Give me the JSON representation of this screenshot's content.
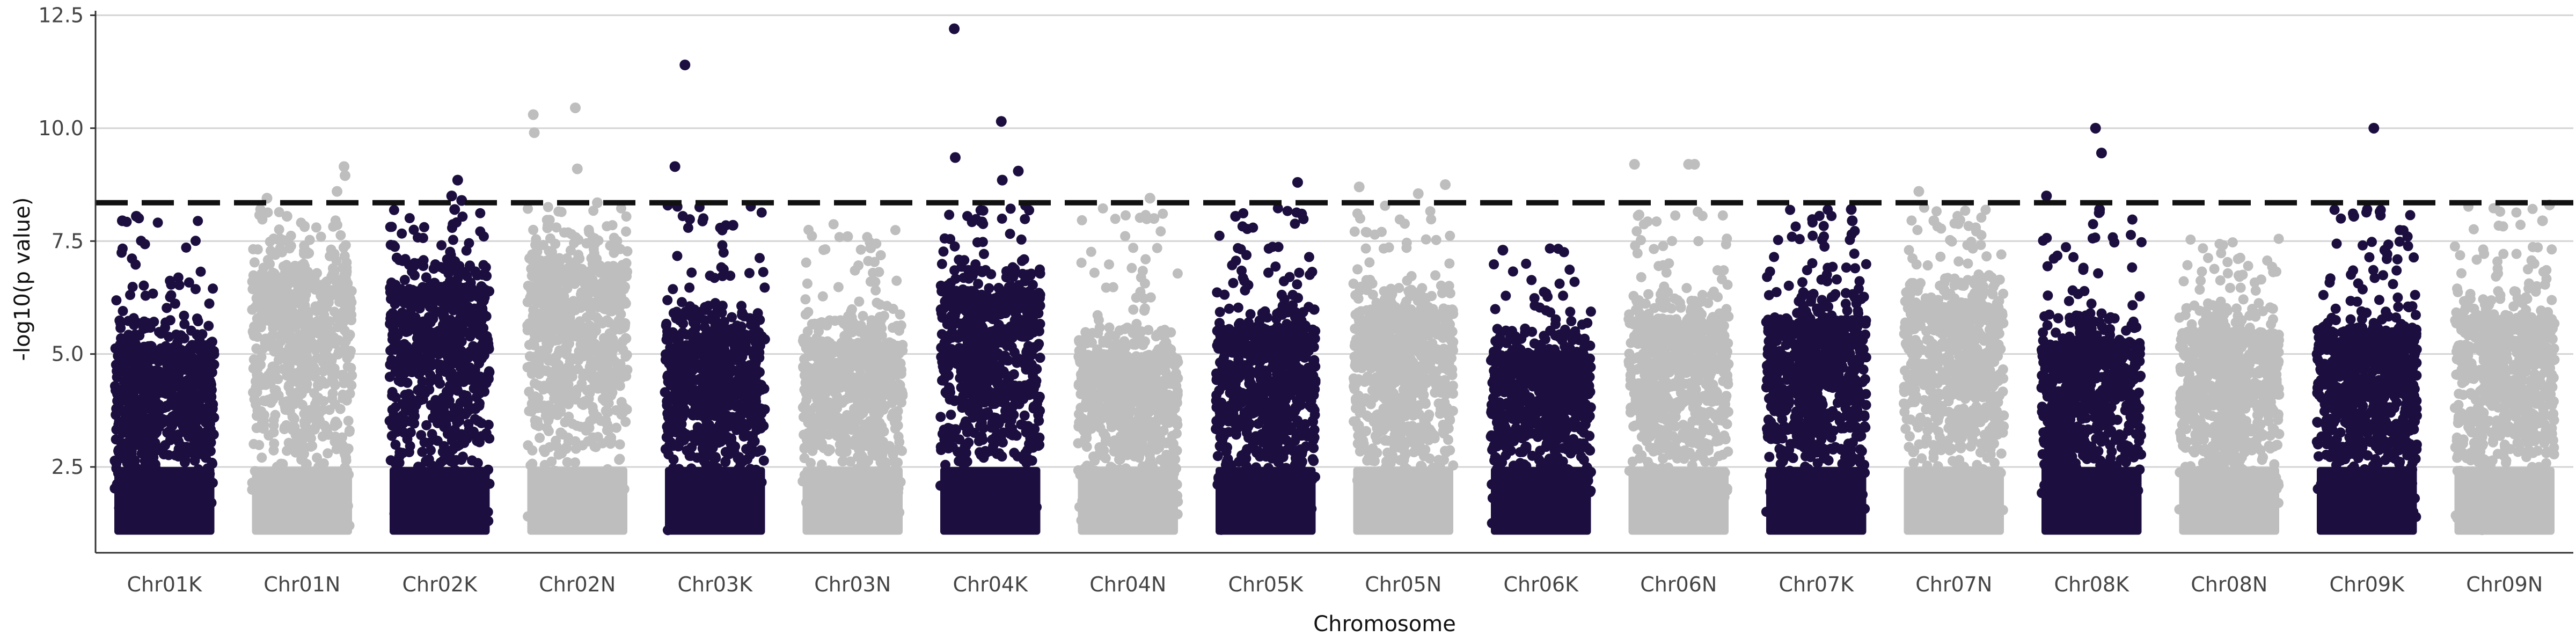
{
  "chart_data": {
    "type": "scatter",
    "title": "",
    "xlabel": "Chromosome",
    "ylabel": "-log10(p value)",
    "ylim": [
      0.6,
      12.6
    ],
    "y_ticks": [
      "2.5",
      "5.0",
      "7.5",
      "10.0",
      "12.5"
    ],
    "grid": "horizontal major lines",
    "threshold": 8.35,
    "colors": {
      "K": "#1c0f40",
      "N": "#bebebe",
      "grid": "#d4d4d4",
      "axis": "#333333",
      "threshold": "#111111"
    },
    "categories": [
      "Chr01K",
      "Chr01N",
      "Chr02K",
      "Chr02N",
      "Chr03K",
      "Chr03N",
      "Chr04K",
      "Chr04N",
      "Chr05K",
      "Chr05N",
      "Chr06K",
      "Chr06N",
      "Chr07K",
      "Chr07N",
      "Chr08K",
      "Chr08N",
      "Chr09K",
      "Chr09N"
    ],
    "chromosome_summaries": [
      {
        "name": "Chr01K",
        "bulk_top": 5.2,
        "max": 8.1
      },
      {
        "name": "Chr01N",
        "bulk_top": 6.8,
        "max": 9.1
      },
      {
        "name": "Chr02K",
        "bulk_top": 6.5,
        "max": 8.9
      },
      {
        "name": "Chr02N",
        "bulk_top": 7.0,
        "max": 10.4
      },
      {
        "name": "Chr03K",
        "bulk_top": 5.5,
        "max": 11.4
      },
      {
        "name": "Chr03N",
        "bulk_top": 5.3,
        "max": 7.9
      },
      {
        "name": "Chr04K",
        "bulk_top": 6.4,
        "max": 12.2
      },
      {
        "name": "Chr04N",
        "bulk_top": 5.0,
        "max": 8.4
      },
      {
        "name": "Chr05K",
        "bulk_top": 5.5,
        "max": 8.8
      },
      {
        "name": "Chr05N",
        "bulk_top": 6.0,
        "max": 8.7
      },
      {
        "name": "Chr06K",
        "bulk_top": 5.0,
        "max": 7.4
      },
      {
        "name": "Chr06N",
        "bulk_top": 5.8,
        "max": 9.2
      },
      {
        "name": "Chr07K",
        "bulk_top": 5.8,
        "max": 8.2
      },
      {
        "name": "Chr07N",
        "bulk_top": 6.2,
        "max": 8.6
      },
      {
        "name": "Chr08K",
        "bulk_top": 5.3,
        "max": 10.0
      },
      {
        "name": "Chr08N",
        "bulk_top": 5.5,
        "max": 7.6
      },
      {
        "name": "Chr09K",
        "bulk_top": 5.5,
        "max": 10.0
      },
      {
        "name": "Chr09N",
        "bulk_top": 5.8,
        "max": 8.3
      }
    ],
    "highlighted_points": [
      {
        "chr": "Chr01K",
        "pos": 0.08,
        "y": 7.95
      },
      {
        "chr": "Chr01K",
        "pos": 0.22,
        "y": 8.05
      },
      {
        "chr": "Chr01N",
        "pos": 0.15,
        "y": 8.45
      },
      {
        "chr": "Chr01N",
        "pos": 0.35,
        "y": 8.05
      },
      {
        "chr": "Chr01N",
        "pos": 0.85,
        "y": 8.6
      },
      {
        "chr": "Chr01N",
        "pos": 0.92,
        "y": 9.15
      },
      {
        "chr": "Chr01N",
        "pos": 0.93,
        "y": 8.95
      },
      {
        "chr": "Chr02K",
        "pos": 0.62,
        "y": 8.5
      },
      {
        "chr": "Chr02K",
        "pos": 0.65,
        "y": 8.2
      },
      {
        "chr": "Chr02K",
        "pos": 0.68,
        "y": 8.85
      },
      {
        "chr": "Chr02K",
        "pos": 0.72,
        "y": 8.4
      },
      {
        "chr": "Chr02N",
        "pos": 0.06,
        "y": 10.3
      },
      {
        "chr": "Chr02N",
        "pos": 0.07,
        "y": 9.9
      },
      {
        "chr": "Chr02N",
        "pos": 0.48,
        "y": 10.45
      },
      {
        "chr": "Chr02N",
        "pos": 0.5,
        "y": 9.1
      },
      {
        "chr": "Chr02N",
        "pos": 0.7,
        "y": 8.35
      },
      {
        "chr": "Chr03K",
        "pos": 0.1,
        "y": 9.15
      },
      {
        "chr": "Chr03K",
        "pos": 0.2,
        "y": 11.4
      },
      {
        "chr": "Chr03K",
        "pos": 0.68,
        "y": 7.85
      },
      {
        "chr": "Chr03N",
        "pos": 0.45,
        "y": 7.6
      },
      {
        "chr": "Chr03N",
        "pos": 0.68,
        "y": 7.35
      },
      {
        "chr": "Chr04K",
        "pos": 0.14,
        "y": 12.2
      },
      {
        "chr": "Chr04K",
        "pos": 0.15,
        "y": 9.35
      },
      {
        "chr": "Chr04K",
        "pos": 0.61,
        "y": 10.15
      },
      {
        "chr": "Chr04K",
        "pos": 0.62,
        "y": 8.85
      },
      {
        "chr": "Chr04K",
        "pos": 0.78,
        "y": 9.05
      },
      {
        "chr": "Chr04N",
        "pos": 0.72,
        "y": 8.45
      },
      {
        "chr": "Chr04N",
        "pos": 0.76,
        "y": 8.0
      },
      {
        "chr": "Chr05K",
        "pos": 0.2,
        "y": 8.05
      },
      {
        "chr": "Chr05K",
        "pos": 0.82,
        "y": 8.8
      },
      {
        "chr": "Chr05K",
        "pos": 0.86,
        "y": 8.1
      },
      {
        "chr": "Chr05N",
        "pos": 0.06,
        "y": 8.7
      },
      {
        "chr": "Chr05N",
        "pos": 0.65,
        "y": 8.55
      },
      {
        "chr": "Chr05N",
        "pos": 0.92,
        "y": 8.75
      },
      {
        "chr": "Chr06K",
        "pos": 0.12,
        "y": 7.3
      },
      {
        "chr": "Chr06N",
        "pos": 0.06,
        "y": 9.2
      },
      {
        "chr": "Chr06N",
        "pos": 0.6,
        "y": 9.2
      },
      {
        "chr": "Chr06N",
        "pos": 0.66,
        "y": 9.2
      },
      {
        "chr": "Chr07K",
        "pos": 0.85,
        "y": 8.2
      },
      {
        "chr": "Chr07K",
        "pos": 0.86,
        "y": 7.95
      },
      {
        "chr": "Chr07N",
        "pos": 0.15,
        "y": 8.6
      },
      {
        "chr": "Chr07N",
        "pos": 0.3,
        "y": 7.95
      },
      {
        "chr": "Chr08K",
        "pos": 0.05,
        "y": 8.5
      },
      {
        "chr": "Chr08K",
        "pos": 0.54,
        "y": 10.0
      },
      {
        "chr": "Chr08K",
        "pos": 0.6,
        "y": 9.45
      },
      {
        "chr": "Chr08K",
        "pos": 0.58,
        "y": 8.2
      },
      {
        "chr": "Chr09K",
        "pos": 0.37,
        "y": 8.05
      },
      {
        "chr": "Chr09K",
        "pos": 0.57,
        "y": 10.0
      },
      {
        "chr": "Chr09K",
        "pos": 0.68,
        "y": 7.3
      },
      {
        "chr": "Chr09N",
        "pos": 0.88,
        "y": 7.95
      },
      {
        "chr": "Chr09N",
        "pos": 0.95,
        "y": 8.3
      }
    ]
  }
}
